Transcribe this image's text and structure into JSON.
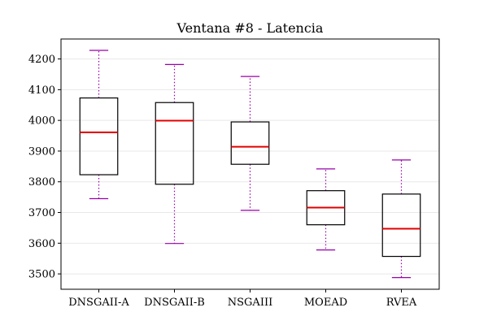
{
  "chart_data": {
    "type": "box",
    "title": "Ventana #8 - Latencia",
    "xlabel": "",
    "ylabel": "",
    "ylim": [
      3450,
      4265
    ],
    "yticks": [
      3500,
      3600,
      3700,
      3800,
      3900,
      4000,
      4100,
      4200
    ],
    "grid": "horizontal",
    "colors": {
      "box": "#000000",
      "median": "#e00000",
      "whisker": "#9900aa",
      "grid": "#e8e8e8"
    },
    "categories": [
      "DNSGAII-A",
      "DNSGAII-B",
      "NSGAIII",
      "MOEAD",
      "RVEA"
    ],
    "boxes": [
      {
        "label": "DNSGAII-A",
        "whislo": 3745,
        "q1": 3823,
        "med": 3961,
        "q3": 4073,
        "whishi": 4228
      },
      {
        "label": "DNSGAII-B",
        "whislo": 3599,
        "q1": 3792,
        "med": 3999,
        "q3": 4058,
        "whishi": 4182
      },
      {
        "label": "NSGAIII",
        "whislo": 3707,
        "q1": 3857,
        "med": 3914,
        "q3": 3995,
        "whishi": 4143
      },
      {
        "label": "MOEAD",
        "whislo": 3578,
        "q1": 3660,
        "med": 3716,
        "q3": 3771,
        "whishi": 3842
      },
      {
        "label": "RVEA",
        "whislo": 3488,
        "q1": 3557,
        "med": 3647,
        "q3": 3760,
        "whishi": 3871
      }
    ]
  }
}
